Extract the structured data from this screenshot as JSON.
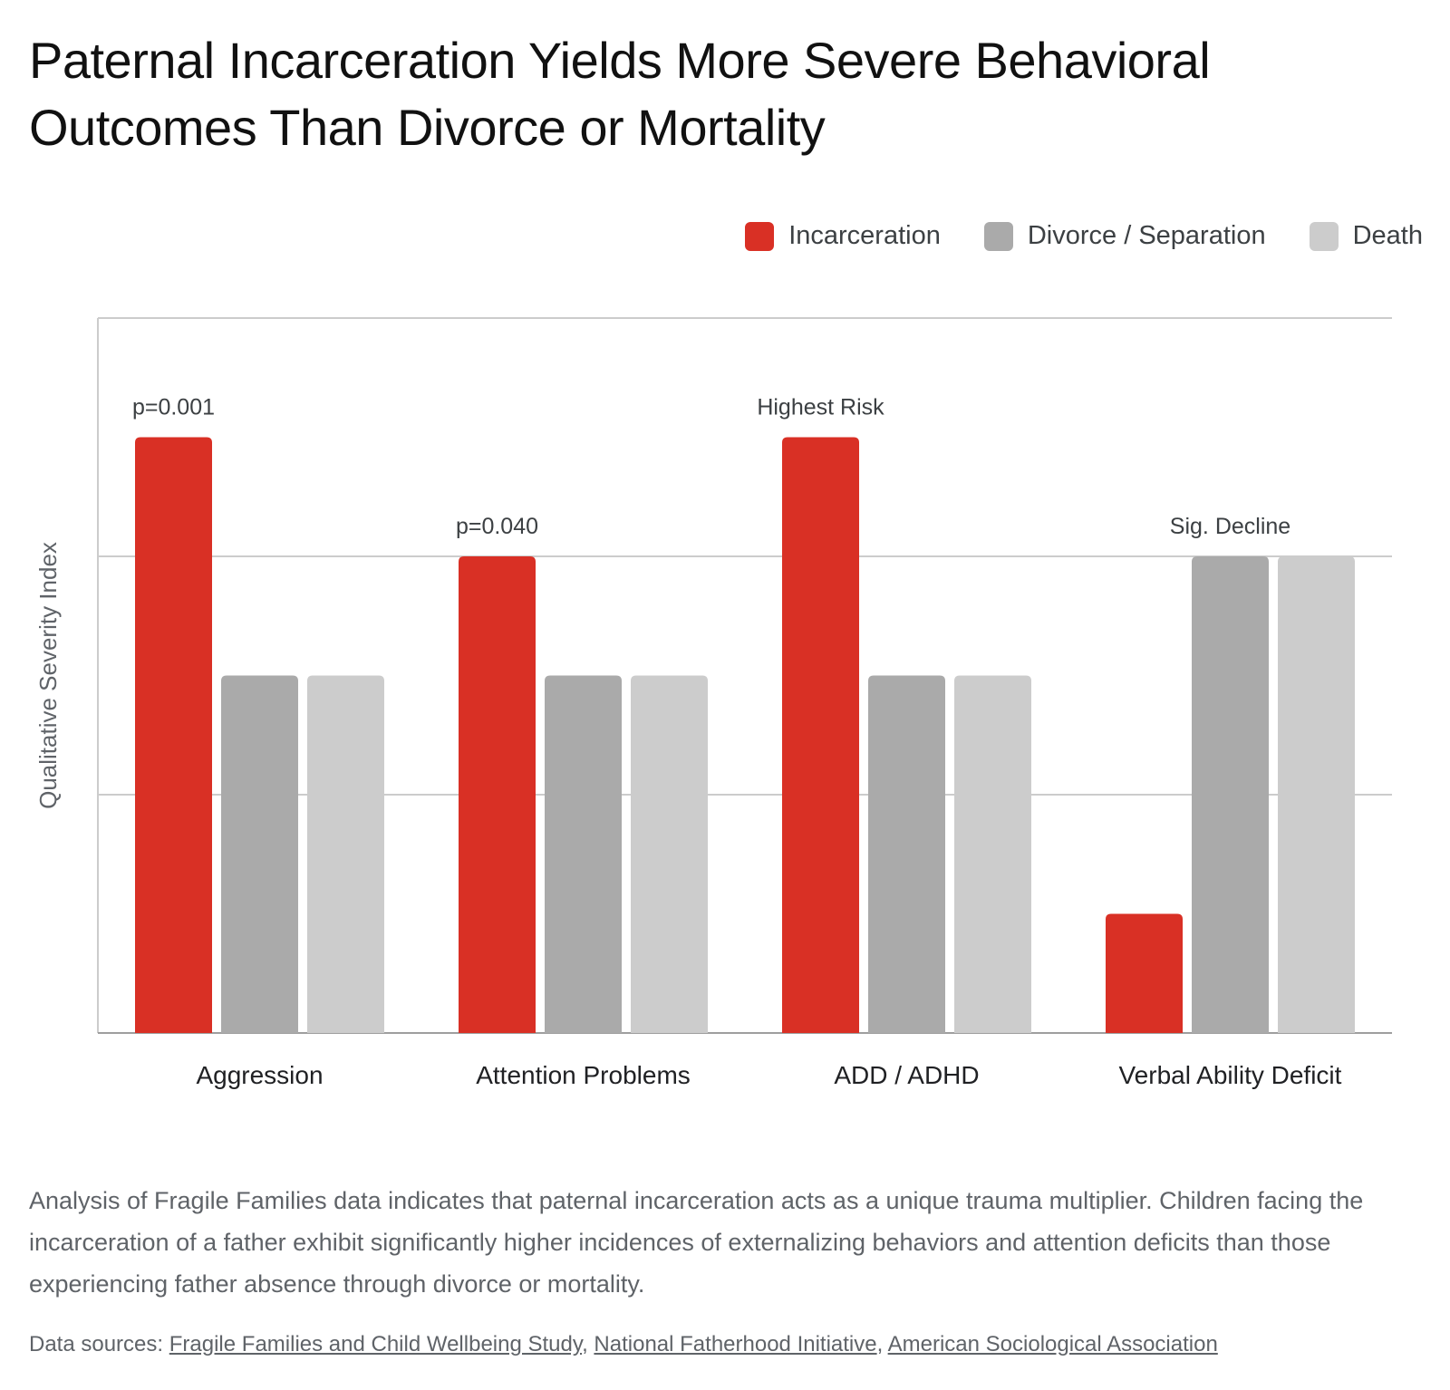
{
  "title": "Paternal Incarceration Yields More Severe Behavioral Outcomes Than Divorce or Mortality",
  "colors": {
    "incarceration": "#d93025",
    "divorce": "#aaaaaa",
    "death": "#cccccc",
    "grid": "#cccccc",
    "axis": "#9e9e9e"
  },
  "chart_data": {
    "type": "bar",
    "categories": [
      "Aggression",
      "Attention Problems",
      "ADD / ADHD",
      "Verbal Ability Deficit"
    ],
    "series": [
      {
        "name": "Incarceration",
        "values": [
          5,
          4,
          5,
          1
        ]
      },
      {
        "name": "Divorce / Separation",
        "values": [
          3,
          3,
          3,
          4
        ]
      },
      {
        "name": "Death",
        "values": [
          3,
          3,
          3,
          4
        ]
      }
    ],
    "annotations": [
      {
        "category_index": 0,
        "series_index": 0,
        "text": "p=0.001"
      },
      {
        "category_index": 1,
        "series_index": 0,
        "text": "p=0.040"
      },
      {
        "category_index": 2,
        "series_index": 0,
        "text": "Highest Risk"
      },
      {
        "category_index": 3,
        "series_index": 1,
        "text": "Sig. Decline"
      }
    ],
    "xlabel": "",
    "ylabel": "Qualitative Severity Index",
    "ylim": [
      0,
      6
    ],
    "yticks": [
      2,
      4,
      6
    ],
    "grid": true,
    "legend_position": "top-right"
  },
  "description": "Analysis of Fragile Families data indicates that paternal incarceration acts as a unique trauma multiplier. Children facing the incarceration of a father exhibit significantly higher incidences of externalizing behaviors and attention deficits than those experiencing father absence through divorce or mortality.",
  "sources": {
    "prefix": "Data sources:",
    "separator": ",",
    "links": [
      "Fragile Families and Child Wellbeing Study",
      "National Fatherhood Initiative",
      "American Sociological Association"
    ]
  }
}
